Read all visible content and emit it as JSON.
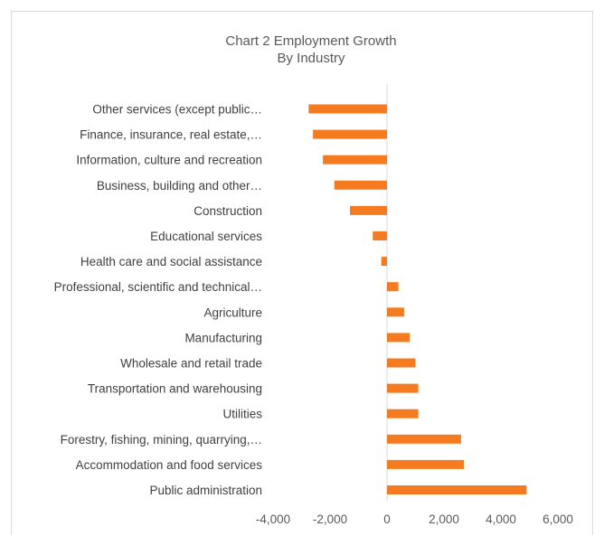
{
  "chart_data": {
    "type": "bar",
    "orientation": "horizontal",
    "title": "Chart 2 Employment Growth",
    "subtitle": "By Industry",
    "categories": [
      "Other services (except public…",
      "Finance, insurance, real estate,…",
      "Information, culture and recreation",
      "Business, building and other…",
      "Construction",
      "Educational services",
      "Health care and social assistance",
      "Professional, scientific and technical…",
      "Agriculture",
      "Manufacturing",
      "Wholesale and retail trade",
      "Transportation and warehousing",
      "Utilities",
      "Forestry, fishing, mining, quarrying,…",
      "Accommodation and food services",
      "Public administration"
    ],
    "values": [
      -2750,
      -2600,
      -2250,
      -1850,
      -1300,
      -500,
      -200,
      400,
      600,
      800,
      1000,
      1100,
      1100,
      2600,
      2700,
      4900
    ],
    "x_ticks": [
      "-4,000",
      "-2,000",
      "0",
      "2,000",
      "4,000",
      "6,000"
    ],
    "x_tick_values": [
      -4000,
      -2000,
      0,
      2000,
      4000,
      6000
    ],
    "xlim": [
      -4000,
      6000
    ],
    "bar_color": "#f47b20",
    "grid": false,
    "legend": "none"
  }
}
